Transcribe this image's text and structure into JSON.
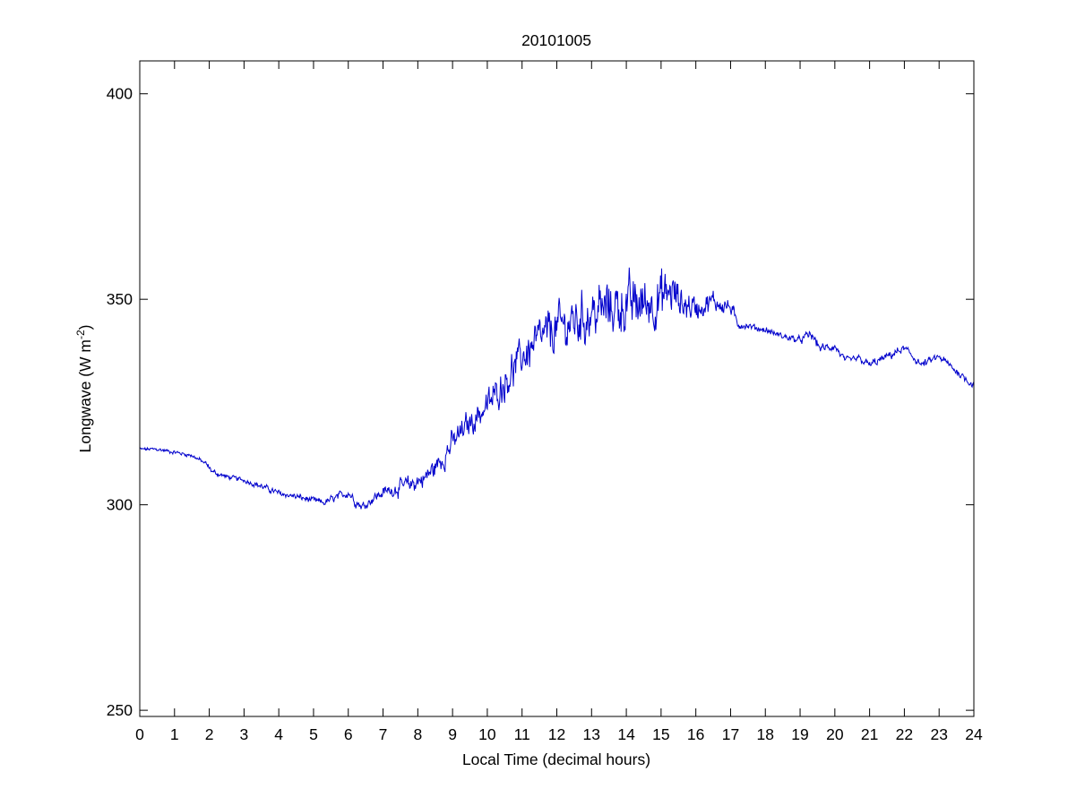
{
  "chart_data": {
    "type": "line",
    "title": "20101005",
    "xlabel": "Local Time (decimal hours)",
    "ylabel": {
      "text": "Longwave (W m",
      "superscript": "-2",
      "suffix": ")"
    },
    "xlim": [
      0,
      24
    ],
    "ylim": [
      248.5,
      408
    ],
    "x_ticks": [
      "0",
      "1",
      "2",
      "3",
      "4",
      "5",
      "6",
      "7",
      "8",
      "9",
      "10",
      "11",
      "12",
      "13",
      "14",
      "15",
      "16",
      "17",
      "18",
      "19",
      "20",
      "21",
      "22",
      "23",
      "24"
    ],
    "y_ticks": [
      "250",
      "300",
      "350",
      "400"
    ],
    "grid": false,
    "legend": "none",
    "series": [
      {
        "color": "#0000cc",
        "x": [
          0,
          0.5,
          1.0,
          1.5,
          1.9,
          2.1,
          2.5,
          3.0,
          3.5,
          4.0,
          4.5,
          5.0,
          5.3,
          5.6,
          6.0,
          6.2,
          6.4,
          6.7,
          7.0,
          7.4,
          7.8,
          8.2,
          8.6,
          9.0,
          9.5,
          10.0,
          10.5,
          11.0,
          11.5,
          12.0,
          12.5,
          13.0,
          13.5,
          14.0,
          14.5,
          15.0,
          15.3,
          15.6,
          16.0,
          16.5,
          17.0,
          17.2,
          17.5,
          18.0,
          18.5,
          19.0,
          19.3,
          19.6,
          20.0,
          20.3,
          20.7,
          21.0,
          21.5,
          22.0,
          22.5,
          23.0,
          23.5,
          24.0
        ],
        "y": [
          313.5,
          313.5,
          312.8,
          312.0,
          310.0,
          308.0,
          306.8,
          306.0,
          304.5,
          302.8,
          302.0,
          301.0,
          300.5,
          301.5,
          303.0,
          301.0,
          299.5,
          301.5,
          303.0,
          304.0,
          305.0,
          306.5,
          310.0,
          315.0,
          320.0,
          324.0,
          330.0,
          336.0,
          340.0,
          343.0,
          344.5,
          346.5,
          348.0,
          348.5,
          349.0,
          350.0,
          352.0,
          349.0,
          348.0,
          349.5,
          348.0,
          344.0,
          343.5,
          342.5,
          341.0,
          340.0,
          341.5,
          338.0,
          338.5,
          335.0,
          335.5,
          334.0,
          336.0,
          338.0,
          334.0,
          336.0,
          332.5,
          329.0
        ],
        "amplitude": [
          0.6,
          0.6,
          0.6,
          0.6,
          0.8,
          0.8,
          0.7,
          0.7,
          0.9,
          0.9,
          1.0,
          1.0,
          1.1,
          1.2,
          1.3,
          1.5,
          1.5,
          1.5,
          1.7,
          2.2,
          2.8,
          3.0,
          3.5,
          3.8,
          4.0,
          4.5,
          5.0,
          5.5,
          6.5,
          7.0,
          7.5,
          8.0,
          8.0,
          8.0,
          8.0,
          8.0,
          7.0,
          5.0,
          4.0,
          3.0,
          2.5,
          1.3,
          1.0,
          1.0,
          1.0,
          1.0,
          1.5,
          1.3,
          1.2,
          1.0,
          1.2,
          1.2,
          1.2,
          1.2,
          1.2,
          1.2,
          1.2,
          1.0
        ]
      }
    ]
  }
}
